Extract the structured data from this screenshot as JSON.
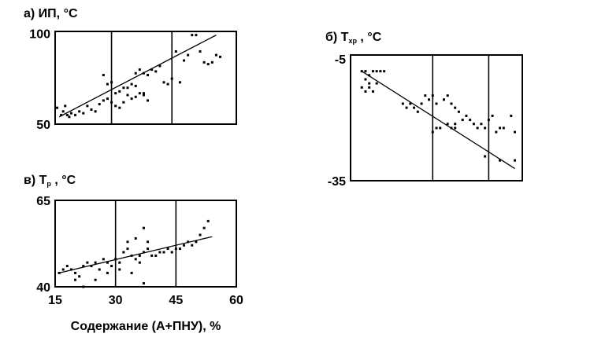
{
  "xlabel": "Содержание (А+ПНУ), %",
  "chart_data": [
    {
      "id": "a",
      "type": "scatter",
      "title": "а) ИП, ",
      "title_unit": "°С",
      "xlim": [
        16,
        61
      ],
      "ylim": [
        50,
        101
      ],
      "xticks": [],
      "yticks": [
        {
          "v": 50,
          "label": "50"
        },
        {
          "v": 100,
          "label": "100"
        }
      ],
      "dividers": [
        30,
        45
      ],
      "trend": [
        [
          17,
          54
        ],
        [
          56,
          99
        ]
      ],
      "points": [
        [
          16.5,
          59
        ],
        [
          17.5,
          55
        ],
        [
          18,
          57
        ],
        [
          18.5,
          60
        ],
        [
          19,
          55
        ],
        [
          19.5,
          54
        ],
        [
          20,
          56
        ],
        [
          21,
          55
        ],
        [
          22,
          57
        ],
        [
          23,
          56
        ],
        [
          24,
          60
        ],
        [
          25,
          58
        ],
        [
          26,
          57
        ],
        [
          27,
          61
        ],
        [
          28,
          63
        ],
        [
          29,
          64
        ],
        [
          30,
          62
        ],
        [
          31,
          60
        ],
        [
          32,
          59
        ],
        [
          33,
          62
        ],
        [
          34,
          66
        ],
        [
          35,
          64
        ],
        [
          36,
          65
        ],
        [
          37,
          67
        ],
        [
          38,
          66
        ],
        [
          39,
          63
        ],
        [
          28,
          77
        ],
        [
          29,
          72
        ],
        [
          30,
          73
        ],
        [
          31,
          67
        ],
        [
          32,
          68
        ],
        [
          33,
          70
        ],
        [
          34,
          70
        ],
        [
          35,
          72
        ],
        [
          36,
          78
        ],
        [
          37,
          80
        ],
        [
          38,
          78
        ],
        [
          39,
          77
        ],
        [
          40,
          80
        ],
        [
          41,
          79
        ],
        [
          42,
          82
        ],
        [
          43,
          73
        ],
        [
          44,
          72
        ],
        [
          45,
          75
        ],
        [
          46,
          90
        ],
        [
          47,
          73
        ],
        [
          48,
          85
        ],
        [
          49,
          88
        ],
        [
          50,
          99
        ],
        [
          51,
          99
        ],
        [
          52,
          90
        ],
        [
          53,
          84
        ],
        [
          54,
          83
        ],
        [
          55,
          84
        ],
        [
          56,
          88
        ],
        [
          57,
          87
        ],
        [
          36,
          71
        ],
        [
          38,
          67
        ]
      ]
    },
    {
      "id": "b",
      "type": "scatter",
      "title": "б) Т",
      "title_sub": "хр",
      "title_unit": " , °С",
      "xlim": [
        8,
        54
      ],
      "ylim": [
        -35,
        -4
      ],
      "xticks": [],
      "yticks": [
        {
          "v": -5,
          "label": "-5"
        },
        {
          "v": -35,
          "label": "-35"
        }
      ],
      "dividers": [
        30,
        45
      ],
      "trend": [
        [
          11,
          -8
        ],
        [
          52,
          -32
        ]
      ],
      "points": [
        [
          11,
          -8
        ],
        [
          12,
          -8
        ],
        [
          13,
          -9
        ],
        [
          14,
          -8
        ],
        [
          15,
          -8
        ],
        [
          16,
          -8
        ],
        [
          17,
          -8
        ],
        [
          11,
          -12
        ],
        [
          12,
          -13
        ],
        [
          13,
          -12
        ],
        [
          14,
          -13
        ],
        [
          15,
          -11
        ],
        [
          12,
          -10
        ],
        [
          13,
          -11
        ],
        [
          22,
          -16
        ],
        [
          23,
          -17
        ],
        [
          24,
          -16
        ],
        [
          25,
          -17
        ],
        [
          26,
          -18
        ],
        [
          27,
          -16
        ],
        [
          28,
          -14
        ],
        [
          29,
          -15
        ],
        [
          30,
          -14
        ],
        [
          31,
          -16
        ],
        [
          33,
          -15
        ],
        [
          34,
          -14
        ],
        [
          35,
          -16
        ],
        [
          36,
          -17
        ],
        [
          37,
          -18
        ],
        [
          38,
          -20
        ],
        [
          39,
          -19
        ],
        [
          40,
          -20
        ],
        [
          41,
          -21
        ],
        [
          42,
          -22
        ],
        [
          43,
          -21
        ],
        [
          44,
          -22
        ],
        [
          45,
          -20
        ],
        [
          46,
          -19
        ],
        [
          47,
          -23
        ],
        [
          48,
          -22
        ],
        [
          49,
          -22
        ],
        [
          51,
          -19
        ],
        [
          52,
          -23
        ],
        [
          36,
          -22
        ],
        [
          36,
          -21
        ],
        [
          35,
          -22
        ],
        [
          34,
          -21
        ],
        [
          30,
          -23
        ],
        [
          31,
          -22
        ],
        [
          32,
          -22
        ],
        [
          44,
          -29
        ],
        [
          48,
          -30
        ],
        [
          52,
          -30
        ]
      ]
    },
    {
      "id": "c",
      "type": "scatter",
      "title": "в) Т",
      "title_sub": "р",
      "title_unit": " , °С",
      "xlim": [
        15,
        60
      ],
      "ylim": [
        40,
        65
      ],
      "xticks": [
        {
          "v": 15,
          "label": "15"
        },
        {
          "v": 30,
          "label": "30"
        },
        {
          "v": 45,
          "label": "45"
        },
        {
          "v": 60,
          "label": "60"
        }
      ],
      "yticks": [
        {
          "v": 40,
          "label": "40"
        },
        {
          "v": 65,
          "label": "65"
        }
      ],
      "dividers": [
        30,
        45
      ],
      "trend": [
        [
          16,
          44
        ],
        [
          54,
          54.5
        ]
      ],
      "points": [
        [
          16,
          44
        ],
        [
          17,
          45
        ],
        [
          18,
          46
        ],
        [
          19,
          45
        ],
        [
          20,
          44
        ],
        [
          21,
          43
        ],
        [
          22,
          46
        ],
        [
          23,
          47
        ],
        [
          24,
          46
        ],
        [
          25,
          47
        ],
        [
          26,
          45
        ],
        [
          27,
          48
        ],
        [
          28,
          47
        ],
        [
          29,
          46
        ],
        [
          30,
          48
        ],
        [
          31,
          47
        ],
        [
          32,
          50
        ],
        [
          33,
          51
        ],
        [
          34,
          49
        ],
        [
          35,
          48
        ],
        [
          36,
          49
        ],
        [
          37,
          50
        ],
        [
          38,
          51
        ],
        [
          39,
          49
        ],
        [
          40,
          49
        ],
        [
          41,
          50
        ],
        [
          42,
          50
        ],
        [
          43,
          51
        ],
        [
          44,
          50
        ],
        [
          45,
          51
        ],
        [
          46,
          51
        ],
        [
          47,
          52
        ],
        [
          48,
          53
        ],
        [
          49,
          52
        ],
        [
          50,
          53
        ],
        [
          51,
          55
        ],
        [
          52,
          57
        ],
        [
          53,
          59
        ],
        [
          20,
          42
        ],
        [
          22,
          40
        ],
        [
          25,
          42
        ],
        [
          28,
          44
        ],
        [
          31,
          45
        ],
        [
          33,
          53
        ],
        [
          35,
          54
        ],
        [
          37,
          57
        ],
        [
          38,
          53
        ],
        [
          37,
          41
        ],
        [
          34,
          44
        ],
        [
          36,
          47
        ]
      ]
    }
  ]
}
